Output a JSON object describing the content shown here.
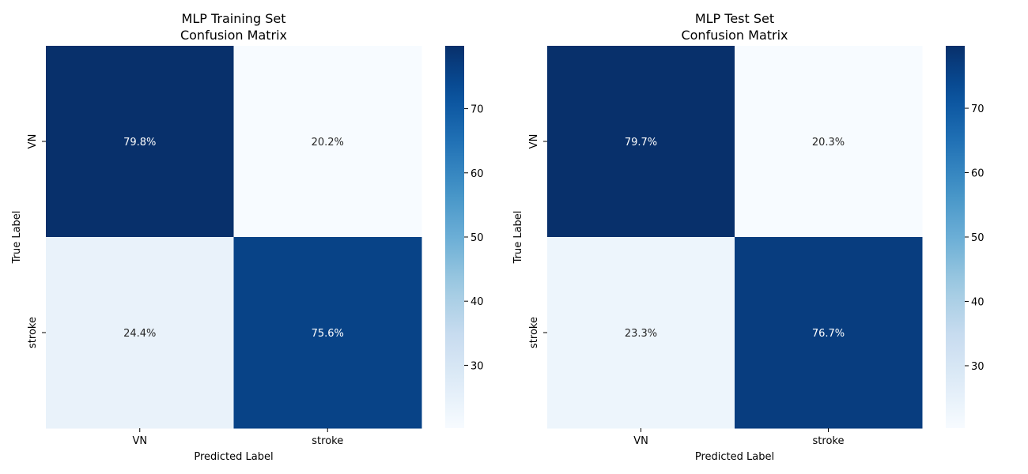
{
  "chart_data": [
    {
      "type": "heatmap",
      "title_line1": "MLP Training Set",
      "title_line2": "Confusion Matrix",
      "xlabel": "Predicted Label",
      "ylabel": "True Label",
      "x_categories": [
        "VN",
        "stroke"
      ],
      "y_categories": [
        "VN",
        "stroke"
      ],
      "values": [
        [
          79.8,
          20.2
        ],
        [
          24.4,
          75.6
        ]
      ],
      "cell_labels": [
        [
          "79.8%",
          "20.2%"
        ],
        [
          "24.4%",
          "75.6%"
        ]
      ],
      "colorbar": {
        "min": 20.2,
        "max": 79.8,
        "ticks": [
          30,
          40,
          50,
          60,
          70
        ],
        "colormap": "Blues"
      }
    },
    {
      "type": "heatmap",
      "title_line1": "MLP Test Set",
      "title_line2": "Confusion Matrix",
      "xlabel": "Predicted Label",
      "ylabel": "True Label",
      "x_categories": [
        "VN",
        "stroke"
      ],
      "y_categories": [
        "VN",
        "stroke"
      ],
      "values": [
        [
          79.7,
          20.3
        ],
        [
          23.3,
          76.7
        ]
      ],
      "cell_labels": [
        [
          "79.7%",
          "20.3%"
        ],
        [
          "23.3%",
          "76.7%"
        ]
      ],
      "colorbar": {
        "min": 20.3,
        "max": 79.7,
        "ticks": [
          30,
          40,
          50,
          60,
          70
        ],
        "colormap": "Blues"
      }
    }
  ]
}
